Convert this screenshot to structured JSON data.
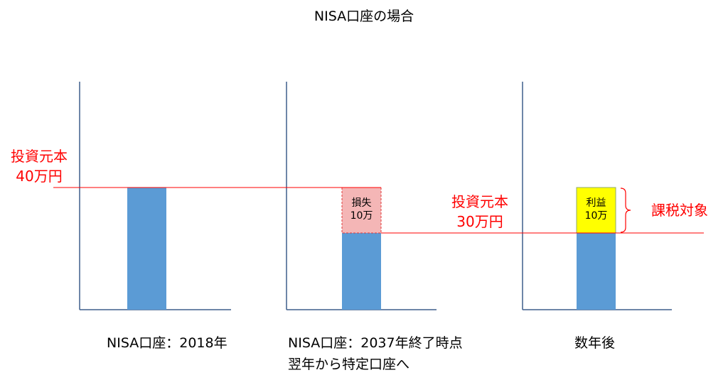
{
  "title": "NISA口座の場合",
  "left_label": {
    "line1": "投資元本",
    "line2": "40万円"
  },
  "mid_label": {
    "line1": "投資元本",
    "line2": "30万円"
  },
  "loss_box": {
    "line1": "損失",
    "line2": "10万"
  },
  "profit_box": {
    "line1": "利益",
    "line2": "10万"
  },
  "taxable_label": "課税対象",
  "captions": {
    "panel1": "NISA口座：2018年",
    "panel2_line1": "NISA口座：2037年終了時点",
    "panel2_line2": "翌年から特定口座へ",
    "panel3": "数年後"
  },
  "colors": {
    "bar": "#5b9bd5",
    "loss_fill": "#f4b6b6",
    "loss_border": "#e23a3a",
    "profit_fill": "#ffff00",
    "profit_border": "#8fa86a",
    "reference_line": "#ff0000",
    "axis": "#3f5f8c",
    "label_red": "#ff0000"
  }
}
